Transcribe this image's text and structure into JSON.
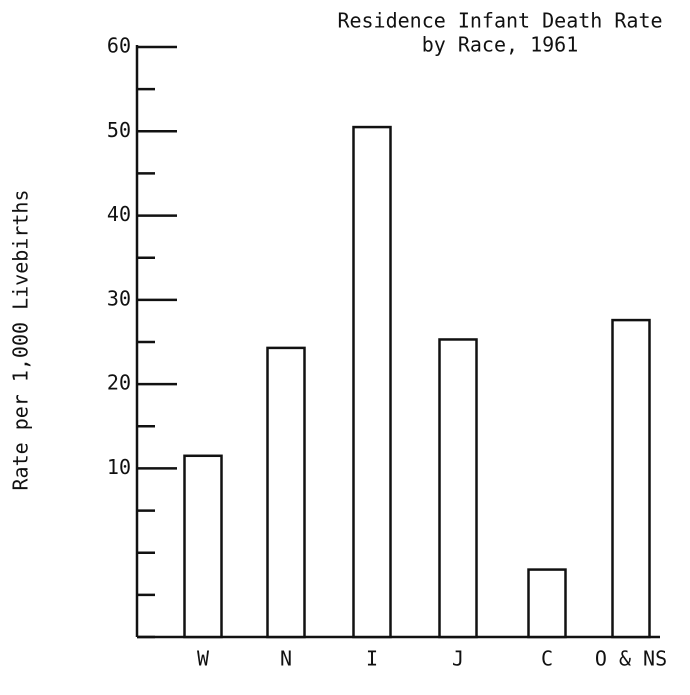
{
  "chart_data": {
    "type": "bar",
    "title": [
      "Residence Infant Death Rate",
      "by Race, 1961"
    ],
    "ylabel": "Rate per 1,000 Livebirths",
    "categories": [
      "W",
      "N",
      "I",
      "J",
      "C",
      "O & NS"
    ],
    "values": [
      11.5,
      24.3,
      50.5,
      25.3,
      -2,
      27.6
    ],
    "color": "#ffffff",
    "ylim": [
      -10,
      60
    ],
    "yticks": [
      10,
      20,
      30,
      40,
      50,
      60
    ],
    "yminorticks": [
      -10,
      -5,
      0,
      5,
      15,
      25,
      35,
      45,
      55
    ]
  }
}
